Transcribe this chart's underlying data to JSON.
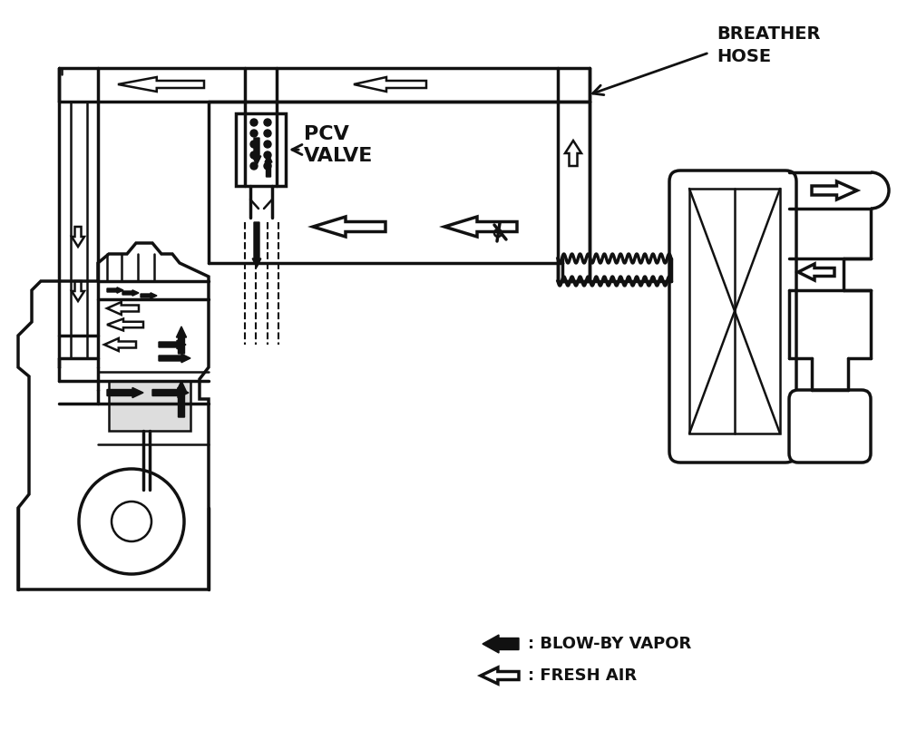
{
  "bg_color": "#ffffff",
  "line_color": "#111111",
  "label_breather_hose": "BREATHER\nHOSE",
  "label_pcv_valve": "PCV\nVALVE",
  "label_blow_by": ": BLOW-BY VAPOR",
  "label_fresh_air": ": FRESH AIR",
  "figsize": [
    10.0,
    8.27
  ],
  "dpi": 100
}
